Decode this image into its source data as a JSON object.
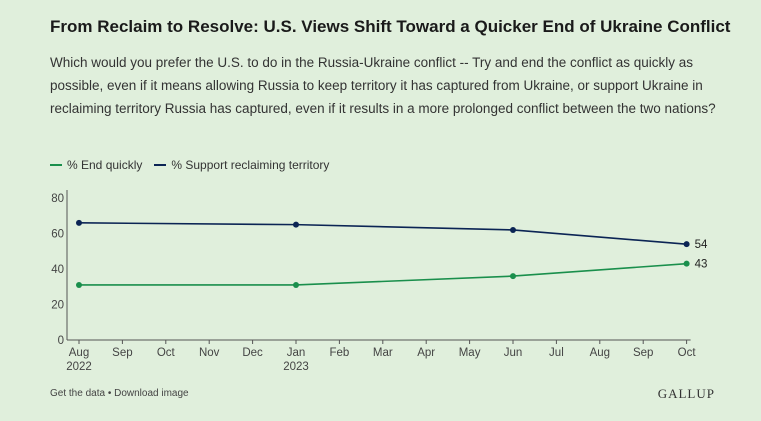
{
  "title": "From Reclaim to Resolve: U.S. Views Shift Toward a Quicker End of Ukraine Conflict",
  "subtitle": "Which would you prefer the U.S. to do in the Russia-Ukraine conflict -- Try and end the conflict as quickly as possible, even if it means allowing Russia to keep territory it has captured from Ukraine, or support Ukraine in reclaiming territory Russia has captured, even if it results in a more prolonged conflict between the two nations?",
  "footer": {
    "get_data": "Get the data",
    "separator": " • ",
    "download": "Download image",
    "brand": "GALLUP"
  },
  "chart_data": {
    "type": "line",
    "ylim": [
      0,
      80
    ],
    "yticks": [
      0,
      20,
      40,
      60,
      80
    ],
    "xticks": [
      {
        "label": "Aug",
        "sub": "2022",
        "m": 0
      },
      {
        "label": "Sep",
        "sub": "",
        "m": 1
      },
      {
        "label": "Oct",
        "sub": "",
        "m": 2
      },
      {
        "label": "Nov",
        "sub": "",
        "m": 3
      },
      {
        "label": "Dec",
        "sub": "",
        "m": 4
      },
      {
        "label": "Jan",
        "sub": "2023",
        "m": 5
      },
      {
        "label": "Feb",
        "sub": "",
        "m": 6
      },
      {
        "label": "Mar",
        "sub": "",
        "m": 7
      },
      {
        "label": "Apr",
        "sub": "",
        "m": 8
      },
      {
        "label": "May",
        "sub": "",
        "m": 9
      },
      {
        "label": "Jun",
        "sub": "",
        "m": 10
      },
      {
        "label": "Jul",
        "sub": "",
        "m": 11
      },
      {
        "label": "Aug",
        "sub": "",
        "m": 12
      },
      {
        "label": "Sep",
        "sub": "",
        "m": 13
      },
      {
        "label": "Oct",
        "sub": "",
        "m": 14
      }
    ],
    "x": [
      "Aug 2022",
      "Jan 2023",
      "Jun 2023",
      "Oct 2023"
    ],
    "xm": [
      0,
      5,
      10,
      14
    ],
    "series": [
      {
        "name": "% End quickly",
        "color": "#1a8f4c",
        "values": [
          31,
          31,
          36,
          43
        ],
        "end_label": "43"
      },
      {
        "name": "% Support reclaiming territory",
        "color": "#0b2454",
        "values": [
          66,
          65,
          62,
          54
        ],
        "end_label": "54"
      }
    ],
    "grid": false,
    "legend": "top-left"
  }
}
